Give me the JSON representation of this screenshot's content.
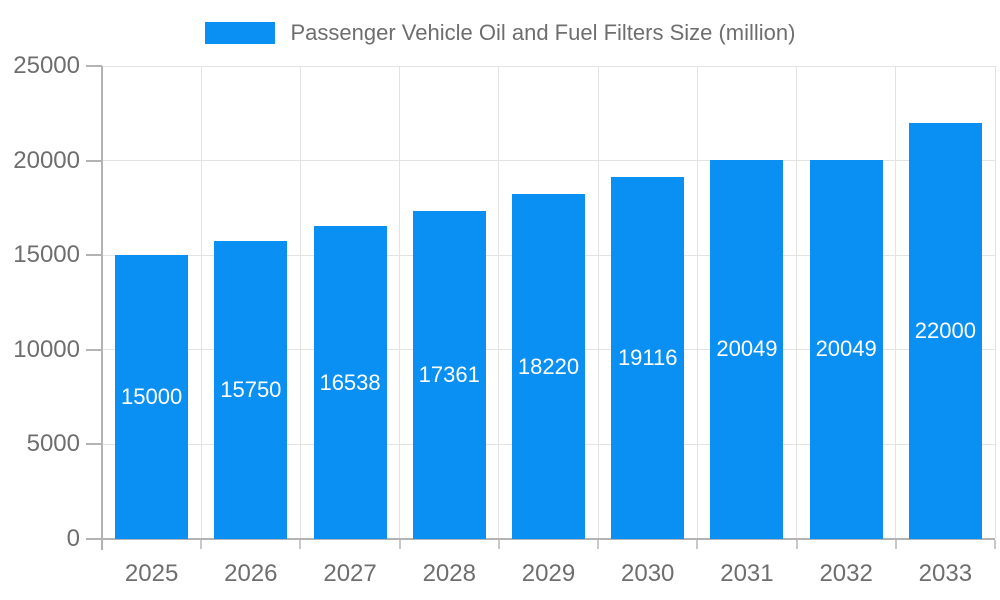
{
  "chart_data": {
    "type": "bar",
    "title": "Passenger Vehicle Oil and Fuel Filters Size (million)",
    "series_name": "Passenger Vehicle Oil and Fuel Filters Size (million)",
    "categories": [
      "2025",
      "2026",
      "2027",
      "2028",
      "2029",
      "2030",
      "2031",
      "2032",
      "2033"
    ],
    "values": [
      15000,
      15750,
      16538,
      17361,
      18220,
      19116,
      20049,
      20049,
      22000
    ],
    "bar_value_labels": [
      "15000",
      "15750",
      "16538",
      "17361",
      "18220",
      "19116",
      "20049",
      "20049",
      "22000"
    ],
    "xlabel": "",
    "ylabel": "",
    "ylim": [
      0,
      25000
    ],
    "y_ticks": [
      0,
      5000,
      10000,
      15000,
      20000,
      25000
    ],
    "y_tick_labels": [
      "0",
      "5000",
      "10000",
      "15000",
      "20000",
      "25000"
    ],
    "grid": true,
    "legend_position": "top",
    "colors": {
      "bar": "#0a90f2",
      "grid": "#e3e3e3",
      "axis_line": "#b3b3b3",
      "x_tick": "#c9c9c9",
      "axis_label": "#6e6e6e",
      "bar_label": "#ffffff",
      "title": "#6e6e6e"
    }
  }
}
